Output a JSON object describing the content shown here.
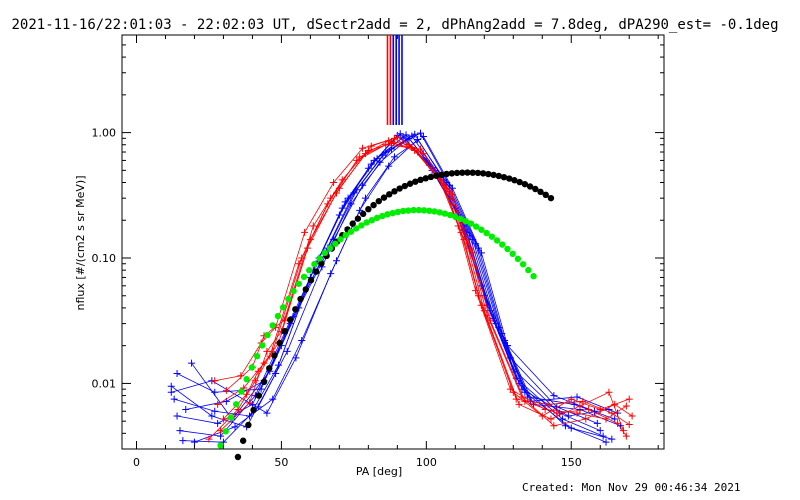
{
  "title": "2021-11-16/22:01:03 - 22:02:03 UT, dSectr2add = 2, dPhAng2add = 7.8deg, dPA290_est= -0.1deg",
  "footer": "Created: Mon Nov 29 00:46:34 2021",
  "chart_data": {
    "type": "line",
    "xlabel": "PA [deg]",
    "ylabel": "nflux [#/(cm2 s sr MeV)]",
    "xlim": [
      -5,
      182
    ],
    "ylim": [
      0.003,
      6
    ],
    "yscale": "log",
    "x_ticks": [
      0,
      50,
      100,
      150
    ],
    "x_tick_labels": [
      "0",
      "50",
      "100",
      "150"
    ],
    "y_ticks": [
      0.01,
      0.1,
      1.0
    ],
    "y_tick_labels": [
      "0.01",
      "0.10",
      "1.00"
    ],
    "colors": {
      "red": "#ff0000",
      "blue": "#0000ff",
      "black": "#000000",
      "green": "#00ee00"
    },
    "vertical_markers": [
      {
        "x": 86.6,
        "color": "red"
      },
      {
        "x": 87.6,
        "color": "red"
      },
      {
        "x": 88.6,
        "color": "blue"
      },
      {
        "x": 89.6,
        "color": "blue"
      },
      {
        "x": 90.6,
        "color": "blue"
      },
      {
        "x": 91.6,
        "color": "blue"
      }
    ],
    "series": [
      {
        "color": "blue",
        "marker": "plus",
        "x": [
          12,
          26,
          38,
          48,
          60,
          70,
          80,
          90,
          100,
          110,
          119,
          128,
          144,
          158
        ],
        "y": [
          0.0095,
          0.0055,
          0.0045,
          0.012,
          0.07,
          0.22,
          0.52,
          0.95,
          0.6,
          0.25,
          0.06,
          0.02,
          0.008,
          0.006
        ]
      },
      {
        "color": "blue",
        "marker": "plus",
        "x": [
          13,
          27,
          39,
          49,
          61,
          71,
          81,
          91,
          101,
          111,
          120,
          129,
          145,
          159
        ],
        "y": [
          0.0075,
          0.006,
          0.0055,
          0.014,
          0.08,
          0.25,
          0.56,
          0.98,
          0.55,
          0.22,
          0.05,
          0.016,
          0.0065,
          0.0048
        ]
      },
      {
        "color": "blue",
        "marker": "plus",
        "x": [
          14,
          28,
          40,
          50,
          62,
          72,
          82,
          92,
          102,
          112,
          121,
          130,
          146,
          160
        ],
        "y": [
          0.0055,
          0.0048,
          0.0068,
          0.02,
          0.09,
          0.28,
          0.6,
          0.92,
          0.5,
          0.2,
          0.042,
          0.013,
          0.0058,
          0.0042
        ]
      },
      {
        "color": "blue",
        "marker": "plus",
        "x": [
          15,
          29,
          41,
          51,
          63,
          73,
          83,
          93,
          103,
          113,
          122,
          131,
          147,
          161
        ],
        "y": [
          0.0042,
          0.0038,
          0.008,
          0.025,
          0.1,
          0.3,
          0.62,
          0.96,
          0.5,
          0.18,
          0.038,
          0.011,
          0.0052,
          0.0038
        ]
      },
      {
        "color": "blue",
        "marker": "plus",
        "x": [
          16,
          30,
          42,
          52,
          64,
          74,
          84,
          94,
          104,
          114,
          123,
          132,
          148,
          162
        ],
        "y": [
          0.0035,
          0.0034,
          0.0065,
          0.018,
          0.085,
          0.27,
          0.58,
          0.9,
          0.46,
          0.16,
          0.033,
          0.01,
          0.0046,
          0.0034
        ]
      },
      {
        "color": "blue",
        "marker": "plus",
        "x": [
          14,
          27,
          43,
          53,
          65,
          75,
          85,
          95,
          105,
          115,
          124,
          133,
          149,
          163
        ],
        "y": [
          0.012,
          0.0085,
          0.009,
          0.03,
          0.11,
          0.33,
          0.66,
          0.94,
          0.44,
          0.15,
          0.03,
          0.009,
          0.0055,
          0.0062
        ]
      },
      {
        "color": "blue",
        "marker": "plus",
        "x": [
          17,
          31,
          44,
          54,
          66,
          76,
          86,
          96,
          106,
          116,
          125,
          134,
          150,
          164
        ],
        "y": [
          0.0062,
          0.0072,
          0.0105,
          0.034,
          0.12,
          0.35,
          0.7,
          0.97,
          0.42,
          0.14,
          0.028,
          0.0085,
          0.0044,
          0.0036
        ]
      },
      {
        "color": "blue",
        "marker": "plus",
        "x": [
          12,
          26,
          45,
          55,
          67,
          77,
          87,
          97,
          107,
          117,
          126,
          135,
          151,
          165
        ],
        "y": [
          0.0085,
          0.0105,
          0.0058,
          0.016,
          0.075,
          0.24,
          0.54,
          0.88,
          0.4,
          0.13,
          0.025,
          0.0078,
          0.0068,
          0.0052
        ]
      },
      {
        "color": "blue",
        "marker": "plus",
        "x": [
          19,
          33,
          46,
          56,
          68,
          78,
          88,
          98,
          108,
          118,
          127,
          136,
          152,
          166
        ],
        "y": [
          0.0145,
          0.0052,
          0.0125,
          0.04,
          0.14,
          0.38,
          0.74,
          0.99,
          0.38,
          0.12,
          0.022,
          0.0072,
          0.0078,
          0.0058
        ]
      },
      {
        "color": "blue",
        "marker": "plus",
        "x": [
          20,
          34,
          47,
          57,
          69,
          79,
          89,
          99,
          109,
          119,
          128,
          137,
          153,
          167
        ],
        "y": [
          0.0034,
          0.0045,
          0.0075,
          0.022,
          0.095,
          0.3,
          0.64,
          0.93,
          0.36,
          0.11,
          0.02,
          0.0068,
          0.0062,
          0.0046
        ]
      },
      {
        "color": "red",
        "marker": "plus",
        "x": [
          29,
          39,
          45,
          50,
          60,
          70,
          80,
          88,
          95,
          105,
          112,
          118,
          130,
          140,
          150,
          160,
          170
        ],
        "y": [
          0.0042,
          0.007,
          0.018,
          0.026,
          0.14,
          0.36,
          0.72,
          0.82,
          0.76,
          0.42,
          0.16,
          0.05,
          0.0085,
          0.0055,
          0.0075,
          0.0062,
          0.0075
        ]
      },
      {
        "color": "red",
        "marker": "plus",
        "x": [
          28,
          37,
          44,
          49,
          59,
          69,
          79,
          87,
          94,
          104,
          111,
          117,
          129,
          141,
          152,
          162,
          169
        ],
        "y": [
          0.0068,
          0.0092,
          0.0145,
          0.021,
          0.12,
          0.33,
          0.68,
          0.86,
          0.8,
          0.45,
          0.18,
          0.055,
          0.009,
          0.0062,
          0.0058,
          0.0052,
          0.0066
        ]
      },
      {
        "color": "red",
        "marker": "plus",
        "x": [
          27,
          36,
          43,
          48,
          58,
          68,
          78,
          89,
          96,
          106,
          113,
          119,
          131,
          142,
          154,
          164,
          170
        ],
        "y": [
          0.0105,
          0.0115,
          0.021,
          0.028,
          0.16,
          0.4,
          0.75,
          0.9,
          0.72,
          0.38,
          0.14,
          0.042,
          0.0075,
          0.0068,
          0.0072,
          0.0058,
          0.0047
        ]
      },
      {
        "color": "red",
        "marker": "plus",
        "x": [
          30,
          38,
          42,
          47,
          57,
          67,
          77,
          88,
          97,
          107,
          114,
          120,
          132,
          143,
          153,
          163,
          168
        ],
        "y": [
          0.0052,
          0.0082,
          0.0125,
          0.018,
          0.1,
          0.3,
          0.64,
          0.84,
          0.7,
          0.36,
          0.13,
          0.038,
          0.0068,
          0.0052,
          0.0066,
          0.0085,
          0.0042
        ]
      },
      {
        "color": "red",
        "marker": "plus",
        "x": [
          25,
          35,
          41,
          46,
          56,
          66,
          76,
          86,
          98,
          108,
          115,
          121,
          133,
          144,
          155,
          165,
          171
        ],
        "y": [
          0.0036,
          0.0062,
          0.0105,
          0.0165,
          0.09,
          0.27,
          0.6,
          0.8,
          0.74,
          0.34,
          0.12,
          0.035,
          0.0078,
          0.0046,
          0.0052,
          0.0068,
          0.0055
        ]
      },
      {
        "color": "red",
        "marker": "plus",
        "x": [
          31,
          40,
          44,
          51,
          61,
          71,
          81,
          90,
          99,
          109,
          116,
          122,
          134,
          145,
          156,
          166,
          169
        ],
        "y": [
          0.0088,
          0.0135,
          0.024,
          0.032,
          0.18,
          0.42,
          0.78,
          0.92,
          0.68,
          0.32,
          0.11,
          0.032,
          0.0072,
          0.0058,
          0.0062,
          0.0048,
          0.0038
        ]
      },
      {
        "color": "black",
        "marker": "circle",
        "x": [
          35,
          36.8,
          38.6,
          40.4,
          42.2,
          44,
          45.8,
          47.6,
          49.4,
          51.2,
          53,
          54.8,
          56.6,
          58.4,
          60.2,
          62,
          63.8,
          65.6,
          67.4,
          69.2,
          71,
          72.8,
          74.6,
          76.4,
          78.2,
          80,
          81.8,
          83.6,
          85.4,
          87.2,
          89,
          90.8,
          92.6,
          94.4,
          96.2,
          98,
          99.8,
          101.6,
          103.4,
          105.2,
          107,
          108.8,
          110.6,
          112.4,
          114.2,
          116,
          117.8,
          119.6,
          121.4,
          123.2,
          125,
          126.8,
          128.6,
          130.4,
          132.2,
          134,
          135.8,
          137.6,
          139.4,
          141.2,
          143
        ],
        "y": [
          0.00259,
          0.00349,
          0.00466,
          0.00614,
          0.008,
          0.0103,
          0.0132,
          0.0167,
          0.021,
          0.0261,
          0.0321,
          0.039,
          0.0471,
          0.0562,
          0.0665,
          0.0779,
          0.0904,
          0.104,
          0.119,
          0.135,
          0.152,
          0.169,
          0.188,
          0.206,
          0.225,
          0.245,
          0.264,
          0.284,
          0.303,
          0.322,
          0.34,
          0.358,
          0.375,
          0.391,
          0.406,
          0.42,
          0.432,
          0.443,
          0.453,
          0.461,
          0.468,
          0.473,
          0.477,
          0.479,
          0.48,
          0.479,
          0.477,
          0.473,
          0.467,
          0.46,
          0.451,
          0.441,
          0.43,
          0.417,
          0.403,
          0.388,
          0.372,
          0.355,
          0.337,
          0.319,
          0.3
        ]
      },
      {
        "color": "green",
        "marker": "circle",
        "x": [
          29,
          30.8,
          32.6,
          34.4,
          36.2,
          38,
          39.8,
          41.6,
          43.4,
          45.2,
          47,
          48.8,
          50.6,
          52.4,
          54.2,
          56,
          57.8,
          59.6,
          61.4,
          63.2,
          65,
          66.8,
          68.6,
          70.4,
          72.2,
          74,
          75.8,
          77.6,
          79.4,
          81.2,
          83,
          84.8,
          86.6,
          88.4,
          90.2,
          92,
          93.8,
          95.6,
          97.4,
          99.2,
          101,
          102.8,
          104.6,
          106.4,
          108.2,
          110,
          111.8,
          113.6,
          115.4,
          117.2,
          119,
          120.8,
          122.6,
          124.4,
          126.2,
          128,
          129.8,
          131.6,
          133.4,
          135.2,
          137
        ],
        "y": [
          0.0032,
          0.00415,
          0.00535,
          0.00682,
          0.00862,
          0.0108,
          0.0134,
          0.0165,
          0.0201,
          0.0243,
          0.029,
          0.0344,
          0.0404,
          0.0471,
          0.0544,
          0.0623,
          0.0708,
          0.0799,
          0.0894,
          0.0993,
          0.11,
          0.12,
          0.13,
          0.141,
          0.152,
          0.162,
          0.172,
          0.182,
          0.192,
          0.2,
          0.209,
          0.216,
          0.223,
          0.228,
          0.233,
          0.237,
          0.239,
          0.241,
          0.241,
          0.24,
          0.238,
          0.235,
          0.231,
          0.226,
          0.22,
          0.213,
          0.205,
          0.197,
          0.188,
          0.178,
          0.168,
          0.158,
          0.148,
          0.138,
          0.128,
          0.118,
          0.108,
          0.0984,
          0.0891,
          0.0801,
          0.0716
        ]
      }
    ]
  }
}
